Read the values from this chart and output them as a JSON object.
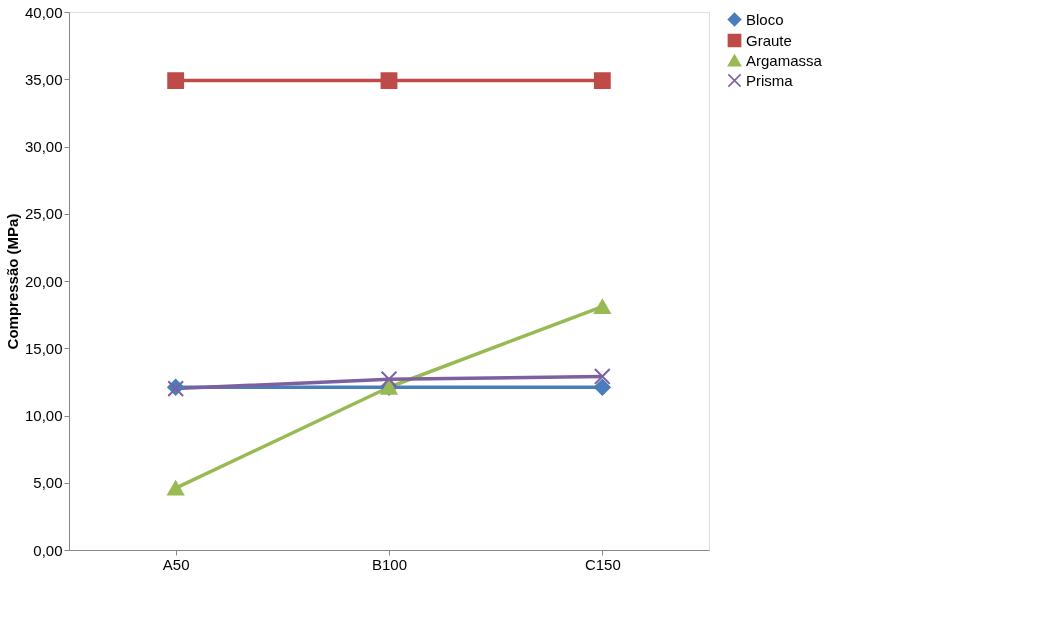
{
  "chart_data": {
    "type": "line",
    "ylabel": "Compressão (MPa)",
    "categories": [
      "A50",
      "B100",
      "C150"
    ],
    "series": [
      {
        "name": "Bloco",
        "color": "#4a7ebb",
        "marker": "diamond",
        "values": [
          12.1,
          12.1,
          12.1
        ]
      },
      {
        "name": "Graute",
        "color": "#be4b48",
        "marker": "square",
        "values": [
          34.9,
          34.9,
          34.9
        ]
      },
      {
        "name": "Argamassa",
        "color": "#98b954",
        "marker": "triangle",
        "values": [
          4.6,
          12.1,
          18.1
        ]
      },
      {
        "name": "Prisma",
        "color": "#7d60a0",
        "marker": "cross",
        "values": [
          12.0,
          12.7,
          12.9
        ]
      }
    ],
    "ylim": [
      0,
      40
    ],
    "yticks": [
      {
        "value": 0,
        "label": "0,00"
      },
      {
        "value": 5,
        "label": "5,00"
      },
      {
        "value": 10,
        "label": "10,00"
      },
      {
        "value": 15,
        "label": "15,00"
      },
      {
        "value": 20,
        "label": "20,00"
      },
      {
        "value": 25,
        "label": "25,00"
      },
      {
        "value": 30,
        "label": "30,00"
      },
      {
        "value": 35,
        "label": "35,00"
      },
      {
        "value": 40,
        "label": "40,00"
      }
    ],
    "grid": false,
    "legend": "right",
    "line_style": "solid"
  }
}
